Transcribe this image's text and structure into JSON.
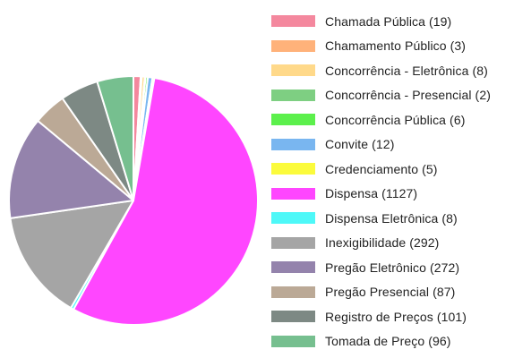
{
  "chart_data": {
    "type": "pie",
    "legend_position": "right",
    "slices": [
      {
        "label": "Chamada Pública (19)",
        "name": "Chamada Pública",
        "value": 19,
        "color": "#f4889e"
      },
      {
        "label": "Chamamento Público (3)",
        "name": "Chamamento Público",
        "value": 3,
        "color": "#ffb27a"
      },
      {
        "label": "Concorrência - Eletrônica (8)",
        "name": "Concorrência - Eletrônica",
        "value": 8,
        "color": "#ffd98a"
      },
      {
        "label": "Concorrência - Presencial (2)",
        "name": "Concorrência - Presencial",
        "value": 2,
        "color": "#7ecf82"
      },
      {
        "label": "Concorrência Pública (6)",
        "name": "Concorrência Pública",
        "value": 6,
        "color": "#5cf04c"
      },
      {
        "label": "Convite (12)",
        "name": "Convite",
        "value": 12,
        "color": "#79b6f0"
      },
      {
        "label": "Credenciamento (5)",
        "name": "Credenciamento",
        "value": 5,
        "color": "#fbfb3c"
      },
      {
        "label": "Dispensa (1127)",
        "name": "Dispensa",
        "value": 1127,
        "color": "#ff46ff"
      },
      {
        "label": "Dispensa Eletrônica (8)",
        "name": "Dispensa Eletrônica",
        "value": 8,
        "color": "#4ef8f8"
      },
      {
        "label": "Inexigibilidade (292)",
        "name": "Inexigibilidade",
        "value": 292,
        "color": "#a5a5a5"
      },
      {
        "label": "Pregão Eletrônico (272)",
        "name": "Pregão Eletrônico",
        "value": 272,
        "color": "#9483ac"
      },
      {
        "label": "Pregão Presencial (87)",
        "name": "Pregão Presencial",
        "value": 87,
        "color": "#bba996"
      },
      {
        "label": "Registro de Preços (101)",
        "name": "Registro de Preços",
        "value": 101,
        "color": "#7d8984"
      },
      {
        "label": "Tomada de Preço (96)",
        "name": "Tomada de Preço",
        "value": 96,
        "color": "#76bf8f"
      }
    ]
  }
}
